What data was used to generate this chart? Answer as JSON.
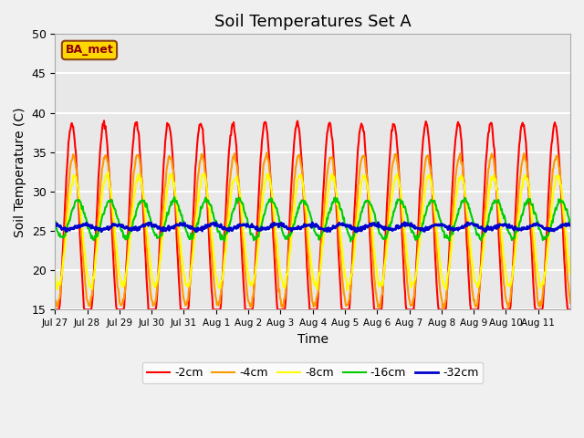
{
  "title": "Soil Temperatures Set A",
  "xlabel": "Time",
  "ylabel": "Soil Temperature (C)",
  "ylim": [
    15,
    50
  ],
  "label_text": "BA_met",
  "legend_labels": [
    "-2cm",
    "-4cm",
    "-8cm",
    "-16cm",
    "-32cm"
  ],
  "line_colors": [
    "#ff0000",
    "#ff9900",
    "#ffff00",
    "#00cc00",
    "#0000cc"
  ],
  "line_widths": [
    1.5,
    1.5,
    1.5,
    1.5,
    2.0
  ],
  "fig_bg_color": "#f0f0f0",
  "plot_bg_color": "#e8e8e8",
  "xtick_labels": [
    "Jul 27",
    "Jul 28",
    "Jul 29",
    "Jul 30",
    "Jul 31",
    "Aug 1",
    "Aug 2",
    "Aug 3",
    "Aug 4",
    "Aug 5",
    "Aug 6",
    "Aug 7",
    "Aug 8",
    "Aug 9",
    "Aug 10",
    "Aug 11"
  ],
  "grid_color": "#ffffff",
  "title_fontsize": 13,
  "n_days": 16
}
